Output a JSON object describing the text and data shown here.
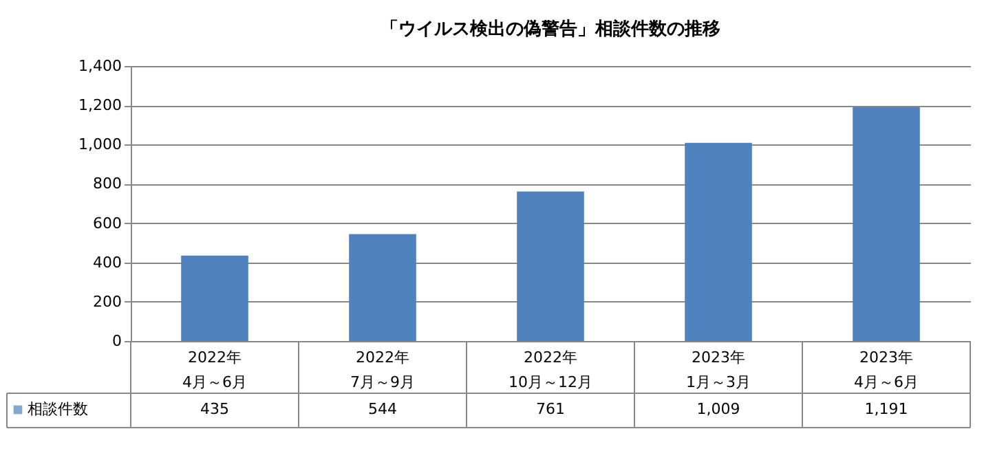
{
  "chart_data": {
    "type": "bar",
    "title": "「ウイルス検出の偽警告」相談件数の推移",
    "categories": [
      "2022年\n4月～6月",
      "2022年\n7月～9月",
      "2022年\n10月～12月",
      "2023年\n1月～3月",
      "2023年\n4月～6月"
    ],
    "series": [
      {
        "name": "相談件数",
        "color": "#4f81bd",
        "values": [
          435,
          544,
          761,
          1009,
          1191
        ],
        "value_labels": [
          "435",
          "544",
          "761",
          "1,009",
          "1,191"
        ]
      }
    ],
    "ylim": [
      0,
      1400
    ],
    "yticks": [
      0,
      200,
      400,
      600,
      800,
      {
        "value": 1000,
        "label": "1,000"
      },
      {
        "value": 1200,
        "label": "1,200"
      },
      {
        "value": 1400,
        "label": "1,400"
      }
    ],
    "grid": "y",
    "legend": "bottom"
  }
}
